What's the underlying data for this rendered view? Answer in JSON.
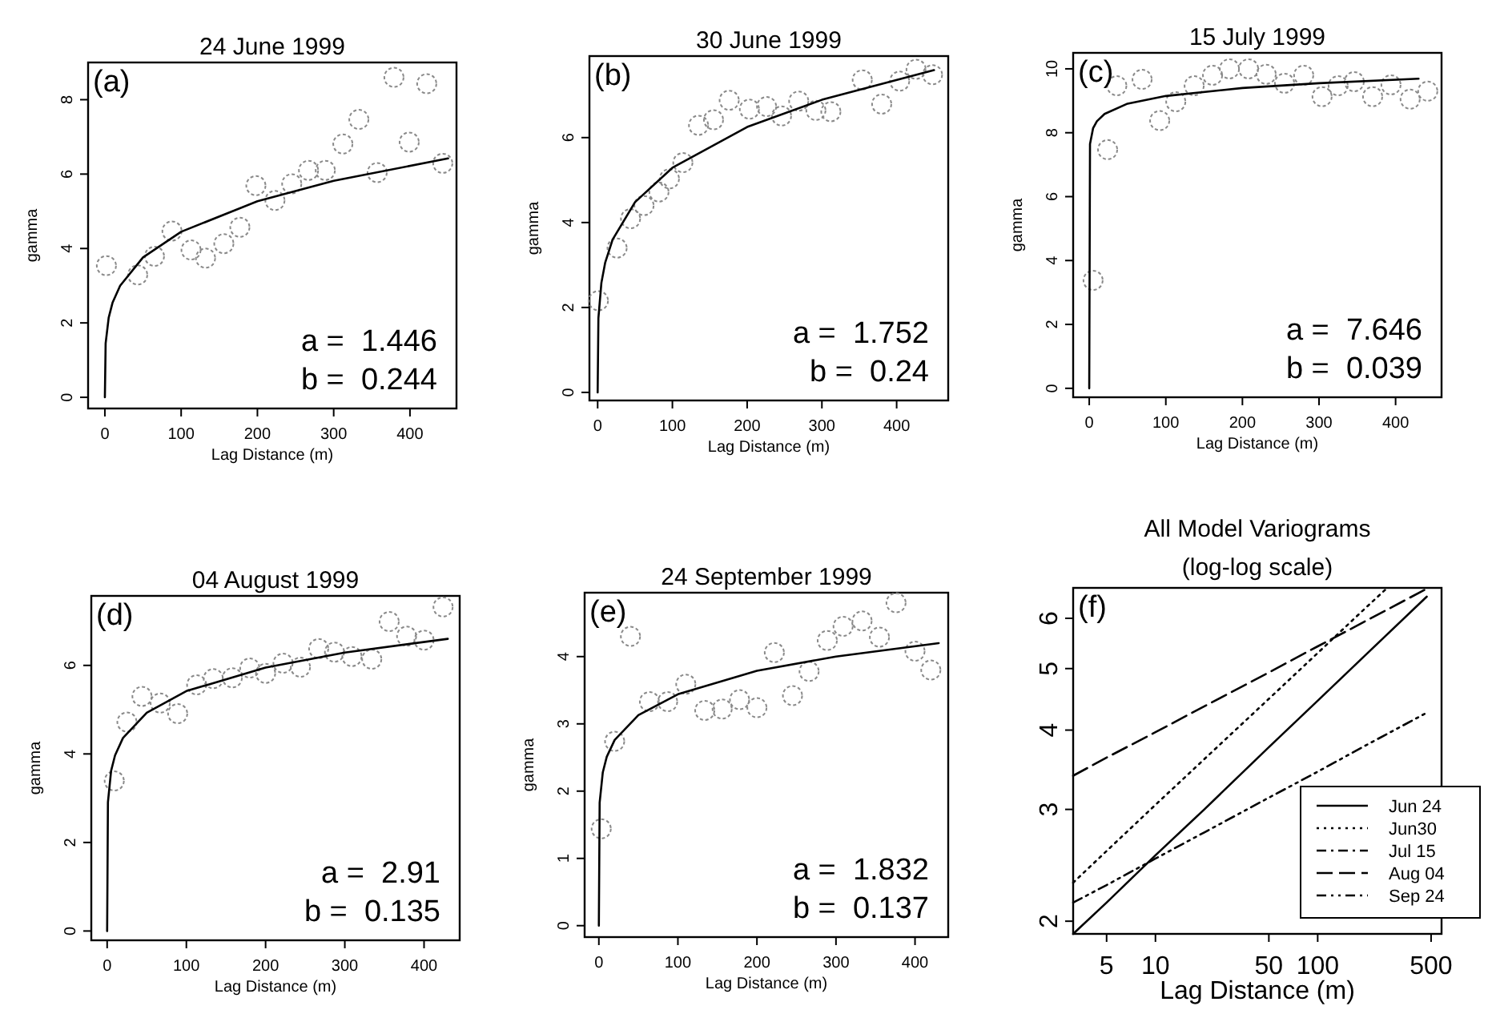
{
  "chart_data": [
    {
      "type": "scatter",
      "title": "24 June 1999",
      "xlabel": "Lag Distance (m)",
      "ylabel": "gamma",
      "xlim": [
        -22,
        461
      ],
      "ylim": [
        -0.3,
        9
      ],
      "xticks": [
        0,
        100,
        200,
        300,
        400
      ],
      "yticks": [
        0,
        2,
        4,
        6,
        8
      ],
      "annotations": [
        "(a)",
        "a =  1.446",
        "b =  0.244"
      ],
      "series": [
        {
          "marker": "circle",
          "color": "#8a8a8a",
          "x": [
            2,
            43,
            65,
            88,
            113,
            132,
            156,
            177,
            198,
            223,
            245,
            267,
            289,
            312,
            333,
            357,
            379,
            399,
            422,
            443
          ],
          "values": [
            3.54,
            3.29,
            3.79,
            4.47,
            3.96,
            3.74,
            4.13,
            4.57,
            5.69,
            5.29,
            5.74,
            6.1,
            6.1,
            6.81,
            7.47,
            6.04,
            8.6,
            6.86,
            8.43,
            6.29
          ]
        },
        {
          "type": "line",
          "line_style": "solid",
          "color": "#000000",
          "x": [
            0,
            1,
            5,
            10,
            20,
            50,
            100,
            200,
            300,
            450
          ],
          "values": [
            0,
            1.45,
            2.14,
            2.54,
            3.0,
            3.76,
            4.45,
            5.27,
            5.82,
            6.42
          ]
        }
      ]
    },
    {
      "type": "scatter",
      "title": "30 June 1999",
      "xlabel": "Lag Distance (m)",
      "ylabel": "gamma",
      "xlim": [
        -11,
        469
      ],
      "ylim": [
        -0.19,
        7.92
      ],
      "xticks": [
        0,
        100,
        200,
        300,
        400
      ],
      "yticks": [
        0,
        2,
        4,
        6
      ],
      "annotations": [
        "(b)",
        "a =  1.752",
        "b =  0.24"
      ],
      "series": [
        {
          "marker": "circle",
          "color": "#8a8a8a",
          "x": [
            1,
            26,
            44,
            62,
            82,
            96,
            114,
            135,
            155,
            176,
            203,
            226,
            246,
            269,
            292,
            312,
            354,
            380,
            404,
            426,
            448
          ],
          "values": [
            2.16,
            3.4,
            4.09,
            4.4,
            4.72,
            5.03,
            5.41,
            6.29,
            6.42,
            6.88,
            6.67,
            6.73,
            6.51,
            6.86,
            6.64,
            6.61,
            7.36,
            6.79,
            7.33,
            7.61,
            7.48
          ]
        },
        {
          "type": "line",
          "line_style": "solid",
          "color": "#000000",
          "x": [
            0,
            1,
            5,
            10,
            20,
            50,
            100,
            200,
            300,
            450
          ],
          "values": [
            0,
            1.75,
            2.58,
            3.05,
            3.6,
            4.48,
            5.29,
            6.25,
            6.89,
            7.59
          ]
        }
      ]
    },
    {
      "type": "scatter",
      "title": "15 July 1999",
      "xlabel": "Lag Distance (m)",
      "ylabel": "gamma",
      "xlim": [
        -21,
        460
      ],
      "ylim": [
        -0.28,
        10.5
      ],
      "xticks": [
        0,
        100,
        200,
        300,
        400
      ],
      "yticks": [
        0,
        2,
        4,
        6,
        8,
        10
      ],
      "annotations": [
        "(c)",
        "a =  7.646",
        "b =  0.039"
      ],
      "series": [
        {
          "marker": "circle",
          "color": "#8a8a8a",
          "x": [
            5,
            24,
            36,
            69,
            92,
            113,
            137,
            161,
            183,
            208,
            231,
            255,
            280,
            304,
            325,
            346,
            370,
            394,
            419,
            442
          ],
          "values": [
            3.38,
            7.47,
            9.47,
            9.67,
            8.38,
            8.97,
            9.47,
            9.8,
            10.0,
            10.0,
            9.83,
            9.55,
            9.8,
            9.13,
            9.47,
            9.6,
            9.13,
            9.5,
            9.05,
            9.3
          ]
        },
        {
          "type": "line",
          "line_style": "solid",
          "color": "#000000",
          "x": [
            0,
            1,
            5,
            10,
            20,
            50,
            100,
            200,
            300,
            430
          ],
          "values": [
            0,
            7.65,
            8.14,
            8.36,
            8.59,
            8.91,
            9.15,
            9.4,
            9.55,
            9.69
          ]
        }
      ]
    },
    {
      "type": "scatter",
      "title": "04 August 1999",
      "xlabel": "Lag Distance (m)",
      "ylabel": "gamma",
      "xlim": [
        -20,
        445
      ],
      "ylim": [
        -0.21,
        7.57
      ],
      "xticks": [
        0,
        100,
        200,
        300,
        400
      ],
      "yticks": [
        0,
        2,
        4,
        6
      ],
      "annotations": [
        "(d)",
        "a =  2.91",
        "b =  0.135"
      ],
      "series": [
        {
          "marker": "circle",
          "color": "#8a8a8a",
          "x": [
            9,
            25,
            44,
            67,
            89,
            113,
            134,
            158,
            180,
            200,
            222,
            244,
            267,
            287,
            309,
            334,
            356,
            378,
            400,
            424
          ],
          "values": [
            3.39,
            4.72,
            5.3,
            5.15,
            4.91,
            5.56,
            5.7,
            5.72,
            5.94,
            5.82,
            6.05,
            5.96,
            6.38,
            6.3,
            6.2,
            6.14,
            6.99,
            6.66,
            6.57,
            7.32
          ]
        },
        {
          "type": "line",
          "line_style": "solid",
          "color": "#000000",
          "x": [
            0,
            1,
            5,
            10,
            20,
            50,
            100,
            200,
            300,
            430
          ],
          "values": [
            0,
            2.91,
            3.62,
            3.97,
            4.36,
            4.93,
            5.42,
            5.95,
            6.29,
            6.6
          ]
        }
      ]
    },
    {
      "type": "scatter",
      "title": "24 September 1999",
      "xlabel": "Lag Distance (m)",
      "ylabel": "gamma",
      "xlim": [
        -18,
        442
      ],
      "ylim": [
        -0.17,
        4.95
      ],
      "xticks": [
        0,
        100,
        200,
        300,
        400
      ],
      "yticks": [
        0,
        1,
        2,
        3,
        4
      ],
      "annotations": [
        "(e)",
        "a =  1.832",
        "b =  0.137"
      ],
      "series": [
        {
          "marker": "circle",
          "color": "#8a8a8a",
          "x": [
            3,
            20,
            40,
            64,
            87,
            110,
            134,
            156,
            178,
            200,
            222,
            245,
            266,
            289,
            309,
            333,
            355,
            376,
            400,
            420
          ],
          "values": [
            1.44,
            2.74,
            4.3,
            3.33,
            3.33,
            3.59,
            3.2,
            3.22,
            3.36,
            3.24,
            4.06,
            3.42,
            3.78,
            4.24,
            4.45,
            4.53,
            4.29,
            4.8,
            4.08,
            3.8
          ]
        },
        {
          "type": "line",
          "line_style": "solid",
          "color": "#000000",
          "x": [
            0,
            1,
            5,
            10,
            20,
            50,
            100,
            200,
            300,
            430
          ],
          "values": [
            0,
            1.83,
            2.28,
            2.51,
            2.76,
            3.13,
            3.44,
            3.79,
            4.0,
            4.2
          ]
        }
      ]
    },
    {
      "type": "line",
      "title": "All Model Variograms",
      "subtitle": "(log-log scale)",
      "xlabel": "Lag Distance (m)",
      "log": "xy",
      "xlim": [
        3.11,
        580
      ],
      "ylim": [
        1.91,
        6.7
      ],
      "xticks": [
        5,
        10,
        50,
        100,
        500
      ],
      "yticks": [
        2,
        3,
        4,
        5,
        6
      ],
      "legend": "bottom right",
      "annotations": [
        "(f)"
      ],
      "series": [
        {
          "name": "Jun 24",
          "line_style": "solid",
          "color": "#000000",
          "x": [
            3.11,
            5,
            10,
            20,
            50,
            100,
            200,
            470
          ],
          "values": [
            1.91,
            2.14,
            2.54,
            3.0,
            3.76,
            4.45,
            5.27,
            6.49
          ]
        },
        {
          "name": "Jun30",
          "line_style": "dotted",
          "color": "#000000",
          "x": [
            3.11,
            5,
            10,
            20,
            50,
            100,
            200,
            260
          ],
          "values": [
            2.3,
            2.58,
            3.05,
            3.6,
            4.48,
            5.29,
            6.25,
            6.65
          ]
        },
        {
          "name": "Jul 15",
          "line_style": "dashdot",
          "color": "#000000"
        },
        {
          "name": "Aug 04",
          "line_style": "longdash",
          "color": "#000000",
          "x": [
            3.11,
            5,
            10,
            20,
            50,
            100,
            200,
            470
          ],
          "values": [
            3.39,
            3.62,
            3.97,
            4.36,
            4.93,
            5.42,
            5.95,
            6.68
          ]
        },
        {
          "name": "Sep 24",
          "line_style": "dashdotdot",
          "color": "#000000",
          "x": [
            3.11,
            5,
            10,
            20,
            50,
            100,
            200,
            470
          ],
          "values": [
            2.14,
            2.28,
            2.51,
            2.76,
            3.13,
            3.44,
            3.79,
            4.26
          ]
        }
      ]
    }
  ]
}
